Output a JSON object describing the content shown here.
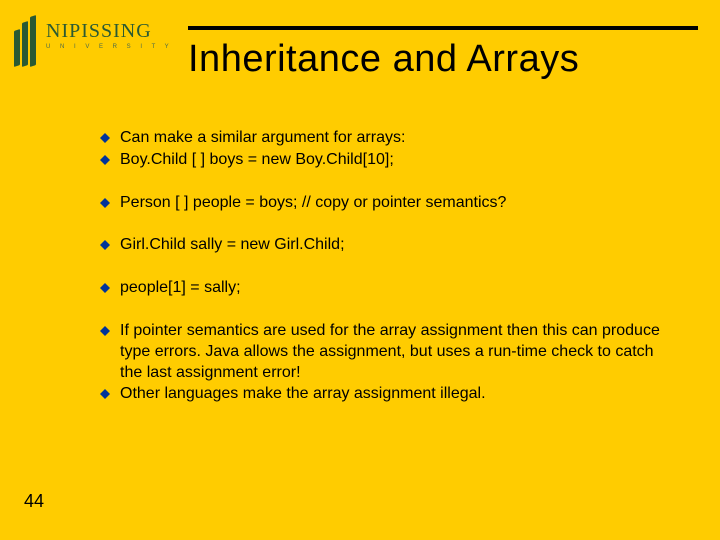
{
  "logo": {
    "main": "NIPISSING",
    "sub": "U N I V E R S I T Y",
    "bar_color": "#2a5a33"
  },
  "title": "Inheritance and Arrays",
  "title_fontsize": 38,
  "title_bar_color": "#000000",
  "background_color": "#ffcc00",
  "bullet_color": "#003399",
  "bullets": [
    {
      "text": "Can make a similar argument for arrays:",
      "gap": false
    },
    {
      "text": "Boy.Child [ ] boys = new Boy.Child[10];",
      "gap": true
    },
    {
      "text": "Person [ ] people = boys;  // copy or pointer semantics?",
      "gap": true
    },
    {
      "text": "Girl.Child sally = new Girl.Child;",
      "gap": true
    },
    {
      "text": "people[1] = sally;",
      "gap": true
    },
    {
      "text": "If pointer semantics are used for the array assignment then this can produce type errors. Java allows the assignment, but uses a run-time check to catch the last assignment error!",
      "gap": false
    },
    {
      "text": "Other languages make the array assignment illegal.",
      "gap": false
    }
  ],
  "body_fontsize": 16,
  "slide_number": "44"
}
